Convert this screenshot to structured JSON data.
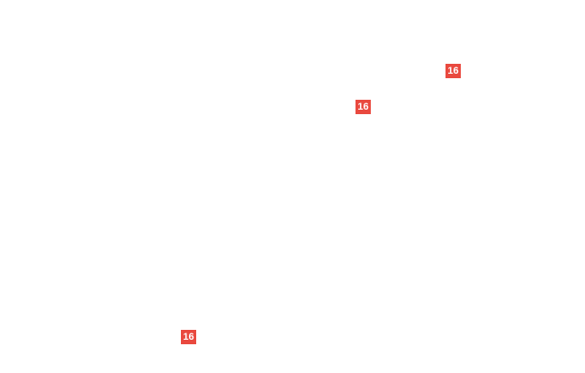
{
  "colors": {
    "page_background": "#ffffff",
    "badge_background": "#e9493f",
    "badge_text": "#ffffff"
  },
  "diagram": {
    "callouts": [
      {
        "label": "16"
      },
      {
        "label": "16"
      },
      {
        "label": "16"
      }
    ]
  }
}
